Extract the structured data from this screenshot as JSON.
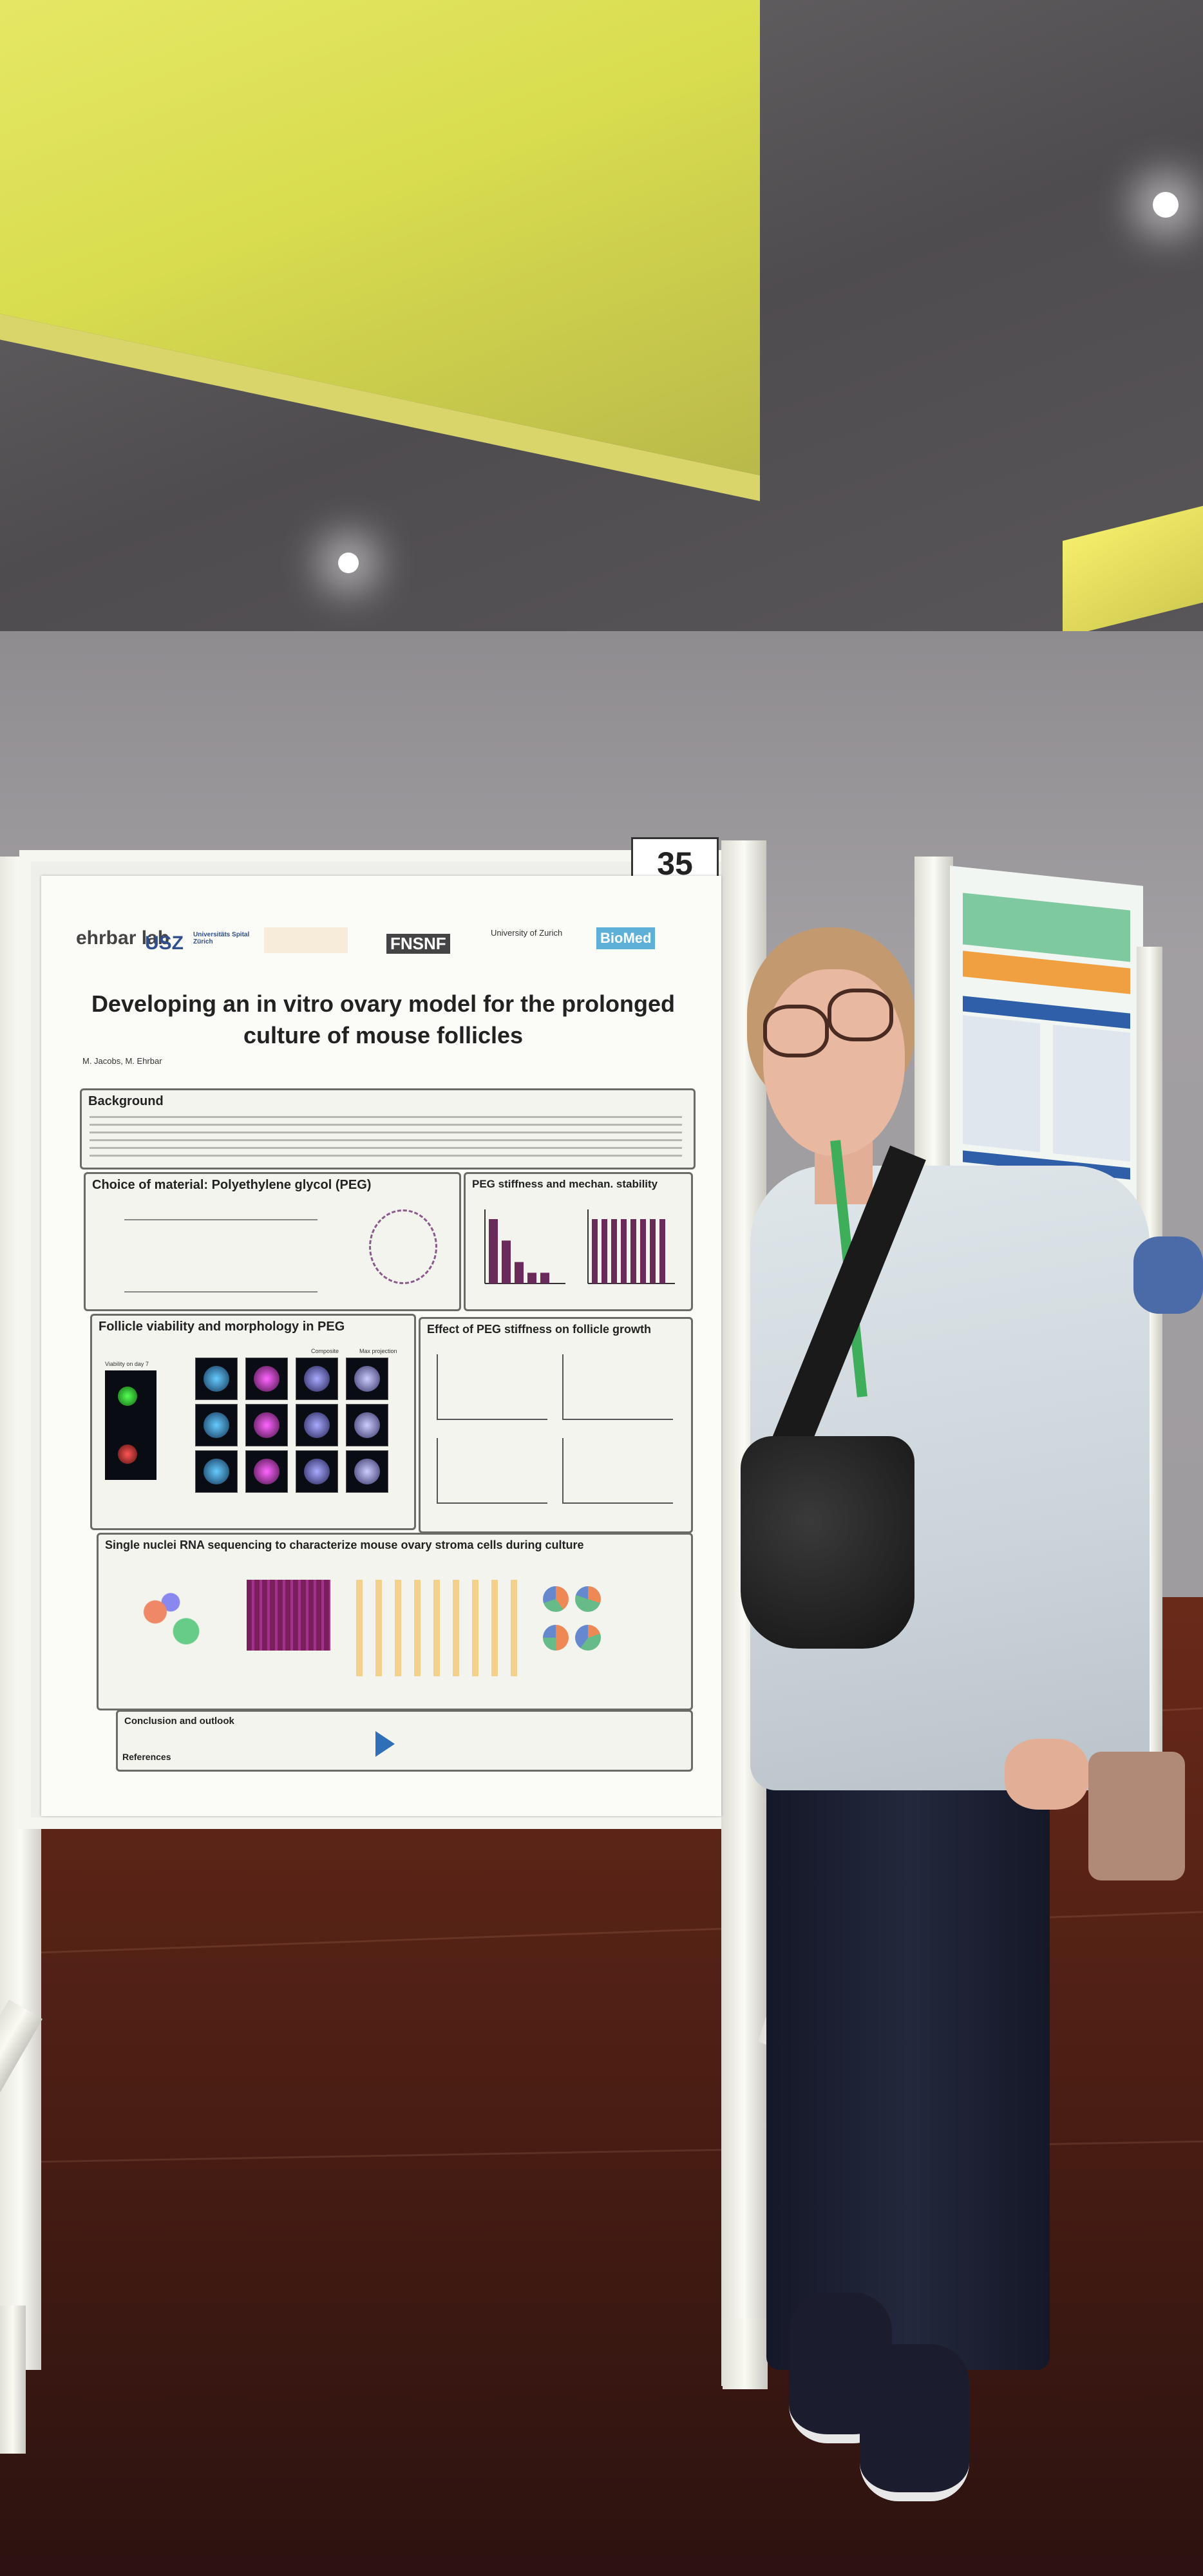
{
  "scene": {
    "board_number": "35"
  },
  "poster": {
    "logos": [
      "ehrbar lab",
      "USZ",
      "Universitäts Spital Zürich",
      "FNSNF",
      "University of Zurich",
      "BioMed"
    ],
    "title": "Developing an in vitro ovary model for the prolonged culture of mouse follicles",
    "authors": "M. Jacobs, M. Ehrbar",
    "sections": {
      "background": "Background",
      "choice_material": "Choice of material: Polyethylene glycol (PEG)",
      "peg_stiffness": "PEG stiffness and mechan. stability",
      "follicle_viability": "Follicle viability and morphology in PEG",
      "effect_peg": "Effect of PEG stiffness on follicle growth",
      "snrna": "Single nuclei RNA sequencing to characterize mouse ovary stroma cells during culture",
      "conclusion": "Conclusion and outlook",
      "references": "References"
    },
    "micro_columns": [
      "Viability on day 7",
      "Composite",
      "Max projection"
    ]
  },
  "chart_data": [
    {
      "type": "bar",
      "values": [
        6,
        4,
        2,
        1,
        1
      ]
    },
    {
      "type": "bar",
      "values": [
        5,
        5,
        5,
        5,
        5,
        5,
        5,
        5
      ]
    }
  ],
  "colors": {
    "ceiling_cove": "#e6e85a",
    "floor": "#5a2418",
    "poster_bg": "#fbfbf7",
    "lanyard": "#3fae5a"
  }
}
